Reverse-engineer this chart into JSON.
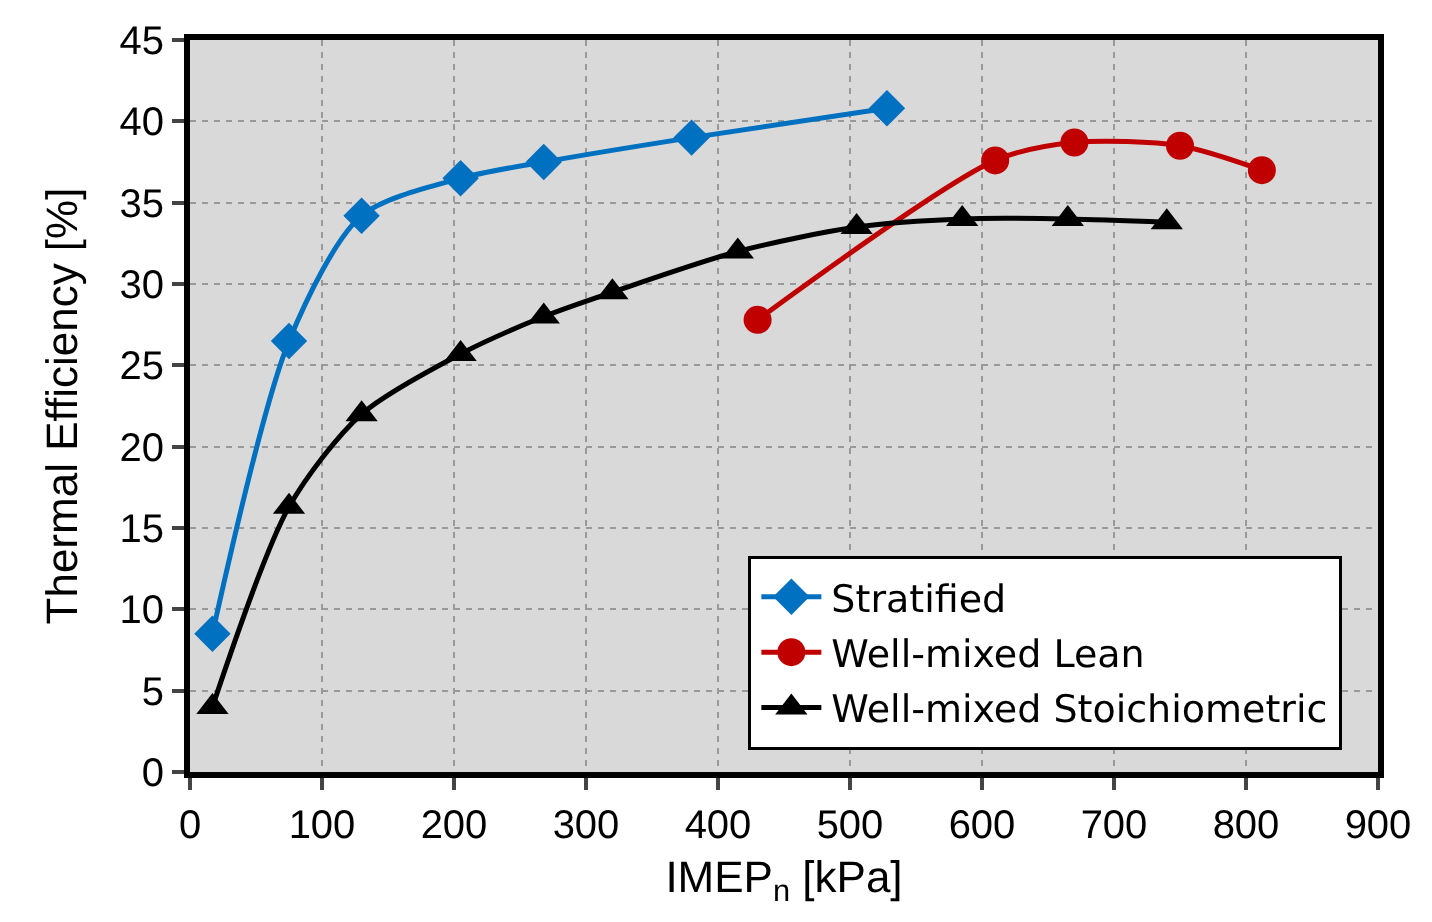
{
  "chart_data": {
    "type": "line",
    "xlabel": "IMEP$_{n}$ [kPa]",
    "ylabel": "Thermal Efficiency [%]",
    "xlim": [
      0,
      900
    ],
    "ylim": [
      0,
      45
    ],
    "xticks": [
      0,
      100,
      200,
      300,
      400,
      500,
      600,
      700,
      800,
      900
    ],
    "yticks": [
      0,
      5,
      10,
      15,
      20,
      25,
      30,
      35,
      40,
      45
    ],
    "grid": true,
    "legend": "bottom right",
    "line_style": "solid",
    "series": [
      {
        "name": "Stratified",
        "color": "#0070c0",
        "marker": "diamond",
        "x": [
          17,
          75,
          130,
          205,
          268,
          380,
          528
        ],
        "values": [
          8.5,
          26.5,
          34.2,
          36.5,
          37.5,
          39,
          40.8
        ]
      },
      {
        "name": "Well-mixed Lean",
        "color": "#c00000",
        "marker": "circle",
        "x": [
          430,
          610,
          670,
          750,
          812
        ],
        "values": [
          27.8,
          37.6,
          38.7,
          38.5,
          37
        ]
      },
      {
        "name": "Well-mixed Stoichiometric",
        "color": "#000000",
        "marker": "triangle",
        "x": [
          17,
          75,
          130,
          205,
          268,
          320,
          415,
          505,
          585,
          665,
          740
        ],
        "values": [
          4,
          16.3,
          22,
          25.7,
          28,
          29.5,
          32,
          33.5,
          34,
          34,
          33.8
        ]
      }
    ]
  }
}
